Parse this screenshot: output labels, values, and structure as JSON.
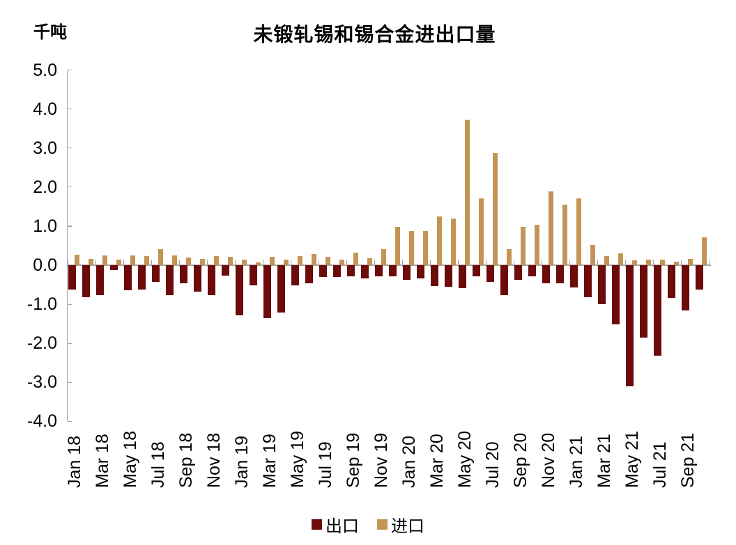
{
  "title": "未锻轧锡和锡合金进出口量",
  "unit": "千吨",
  "chart_data": {
    "type": "bar",
    "title": "未锻轧锡和锡合金进出口量",
    "ylabel": "千吨",
    "ylim": [
      -4.0,
      5.0
    ],
    "grid": false,
    "legend_position": "bottom",
    "y_tick_labels": [
      "5.0",
      "4.0",
      "3.0",
      "2.0",
      "1.0",
      "0.0",
      "-1.0",
      "-2.0",
      "-3.0",
      "-4.0"
    ],
    "x_tick_labels": [
      "Jan 18",
      "Mar 18",
      "May 18",
      "Jul 18",
      "Sep 18",
      "Nov 18",
      "Jan 19",
      "Mar 19",
      "May 19",
      "Jul 19",
      "Sep 19",
      "Nov 19",
      "Jan 20",
      "Mar 20",
      "May 20",
      "Jul 20",
      "Sep 20",
      "Nov 20",
      "Jan 21",
      "Mar 21",
      "May 21",
      "Jul 21",
      "Sep 21"
    ],
    "categories": [
      "Jan 18",
      "Feb 18",
      "Mar 18",
      "Apr 18",
      "May 18",
      "Jun 18",
      "Jul 18",
      "Aug 18",
      "Sep 18",
      "Oct 18",
      "Nov 18",
      "Dec 18",
      "Jan 19",
      "Feb 19",
      "Mar 19",
      "Apr 19",
      "May 19",
      "Jun 19",
      "Jul 19",
      "Aug 19",
      "Sep 19",
      "Oct 19",
      "Nov 19",
      "Dec 19",
      "Jan 20",
      "Feb 20",
      "Mar 20",
      "Apr 20",
      "May 20",
      "Jun 20",
      "Jul 20",
      "Aug 20",
      "Sep 20",
      "Oct 20",
      "Nov 20",
      "Dec 20",
      "Jan 21",
      "Feb 21",
      "Mar 21",
      "Apr 21",
      "May 21",
      "Jun 21",
      "Jul 21",
      "Aug 21",
      "Sep 21",
      "Oct 21"
    ],
    "series": [
      {
        "name": "出口",
        "color": "#6d0a0a",
        "values": [
          -0.63,
          -0.81,
          -0.77,
          -0.13,
          -0.64,
          -0.62,
          -0.43,
          -0.77,
          -0.47,
          -0.68,
          -0.77,
          -0.27,
          -1.28,
          -0.51,
          -1.36,
          -1.21,
          -0.52,
          -0.46,
          -0.31,
          -0.31,
          -0.28,
          -0.33,
          -0.29,
          -0.29,
          -0.37,
          -0.33,
          -0.53,
          -0.55,
          -0.58,
          -0.28,
          -0.43,
          -0.77,
          -0.37,
          -0.29,
          -0.46,
          -0.46,
          -0.56,
          -0.81,
          -0.99,
          -1.51,
          -3.1,
          -1.85,
          -2.31,
          -0.83,
          -1.16,
          -0.63
        ]
      },
      {
        "name": "进口",
        "color": "#c49456",
        "values": [
          0.27,
          0.17,
          0.25,
          0.14,
          0.26,
          0.24,
          0.41,
          0.26,
          0.2,
          0.17,
          0.23,
          0.21,
          0.14,
          0.08,
          0.21,
          0.14,
          0.23,
          0.29,
          0.21,
          0.14,
          0.33,
          0.18,
          0.42,
          0.99,
          0.87,
          0.87,
          1.25,
          1.2,
          3.72,
          1.72,
          2.88,
          0.42,
          0.99,
          1.04,
          1.9,
          1.56,
          1.72,
          0.51,
          0.23,
          0.3,
          0.13,
          0.15,
          0.14,
          0.09,
          0.17,
          0.72
        ]
      }
    ]
  },
  "legend": {
    "export_label": "出口",
    "import_label": "进口",
    "export_color": "#6d0a0a",
    "import_color": "#c49456"
  },
  "colors": {
    "axis": "#a6a6a6",
    "background": "#ffffff"
  }
}
